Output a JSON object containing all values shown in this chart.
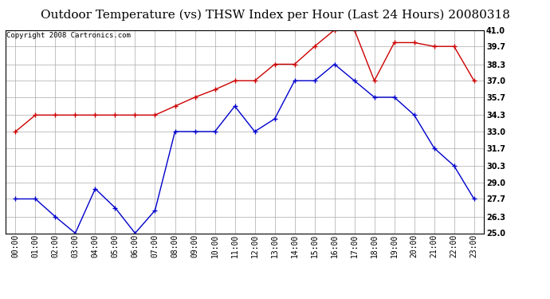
{
  "title": "Outdoor Temperature (vs) THSW Index per Hour (Last 24 Hours) 20080318",
  "copyright": "Copyright 2008 Cartronics.com",
  "hours": [
    "00:00",
    "01:00",
    "02:00",
    "03:00",
    "04:00",
    "05:00",
    "06:00",
    "07:00",
    "08:00",
    "09:00",
    "10:00",
    "11:00",
    "12:00",
    "13:00",
    "14:00",
    "15:00",
    "16:00",
    "17:00",
    "18:00",
    "19:00",
    "20:00",
    "21:00",
    "22:00",
    "23:00"
  ],
  "blue_data": [
    27.7,
    27.7,
    26.3,
    25.0,
    28.5,
    27.0,
    25.0,
    26.8,
    33.0,
    33.0,
    33.0,
    35.0,
    33.0,
    34.0,
    37.0,
    37.0,
    38.3,
    37.0,
    35.7,
    35.7,
    34.3,
    31.7,
    30.3,
    27.7
  ],
  "red_data": [
    33.0,
    34.3,
    34.3,
    34.3,
    34.3,
    34.3,
    34.3,
    34.3,
    35.0,
    35.7,
    36.3,
    37.0,
    37.0,
    38.3,
    38.3,
    39.7,
    41.0,
    41.0,
    37.0,
    40.0,
    40.0,
    39.7,
    39.7,
    37.0
  ],
  "ylim": [
    25.0,
    41.0
  ],
  "yticks": [
    25.0,
    26.3,
    27.7,
    29.0,
    30.3,
    31.7,
    33.0,
    34.3,
    35.7,
    37.0,
    38.3,
    39.7,
    41.0
  ],
  "blue_color": "#0000cc",
  "red_color": "#cc0000",
  "bg_color": "#ffffff",
  "grid_color": "#aaaaaa",
  "title_fontsize": 11,
  "copyright_fontsize": 6.5,
  "tick_fontsize": 7,
  "ytick_fontsize": 7
}
